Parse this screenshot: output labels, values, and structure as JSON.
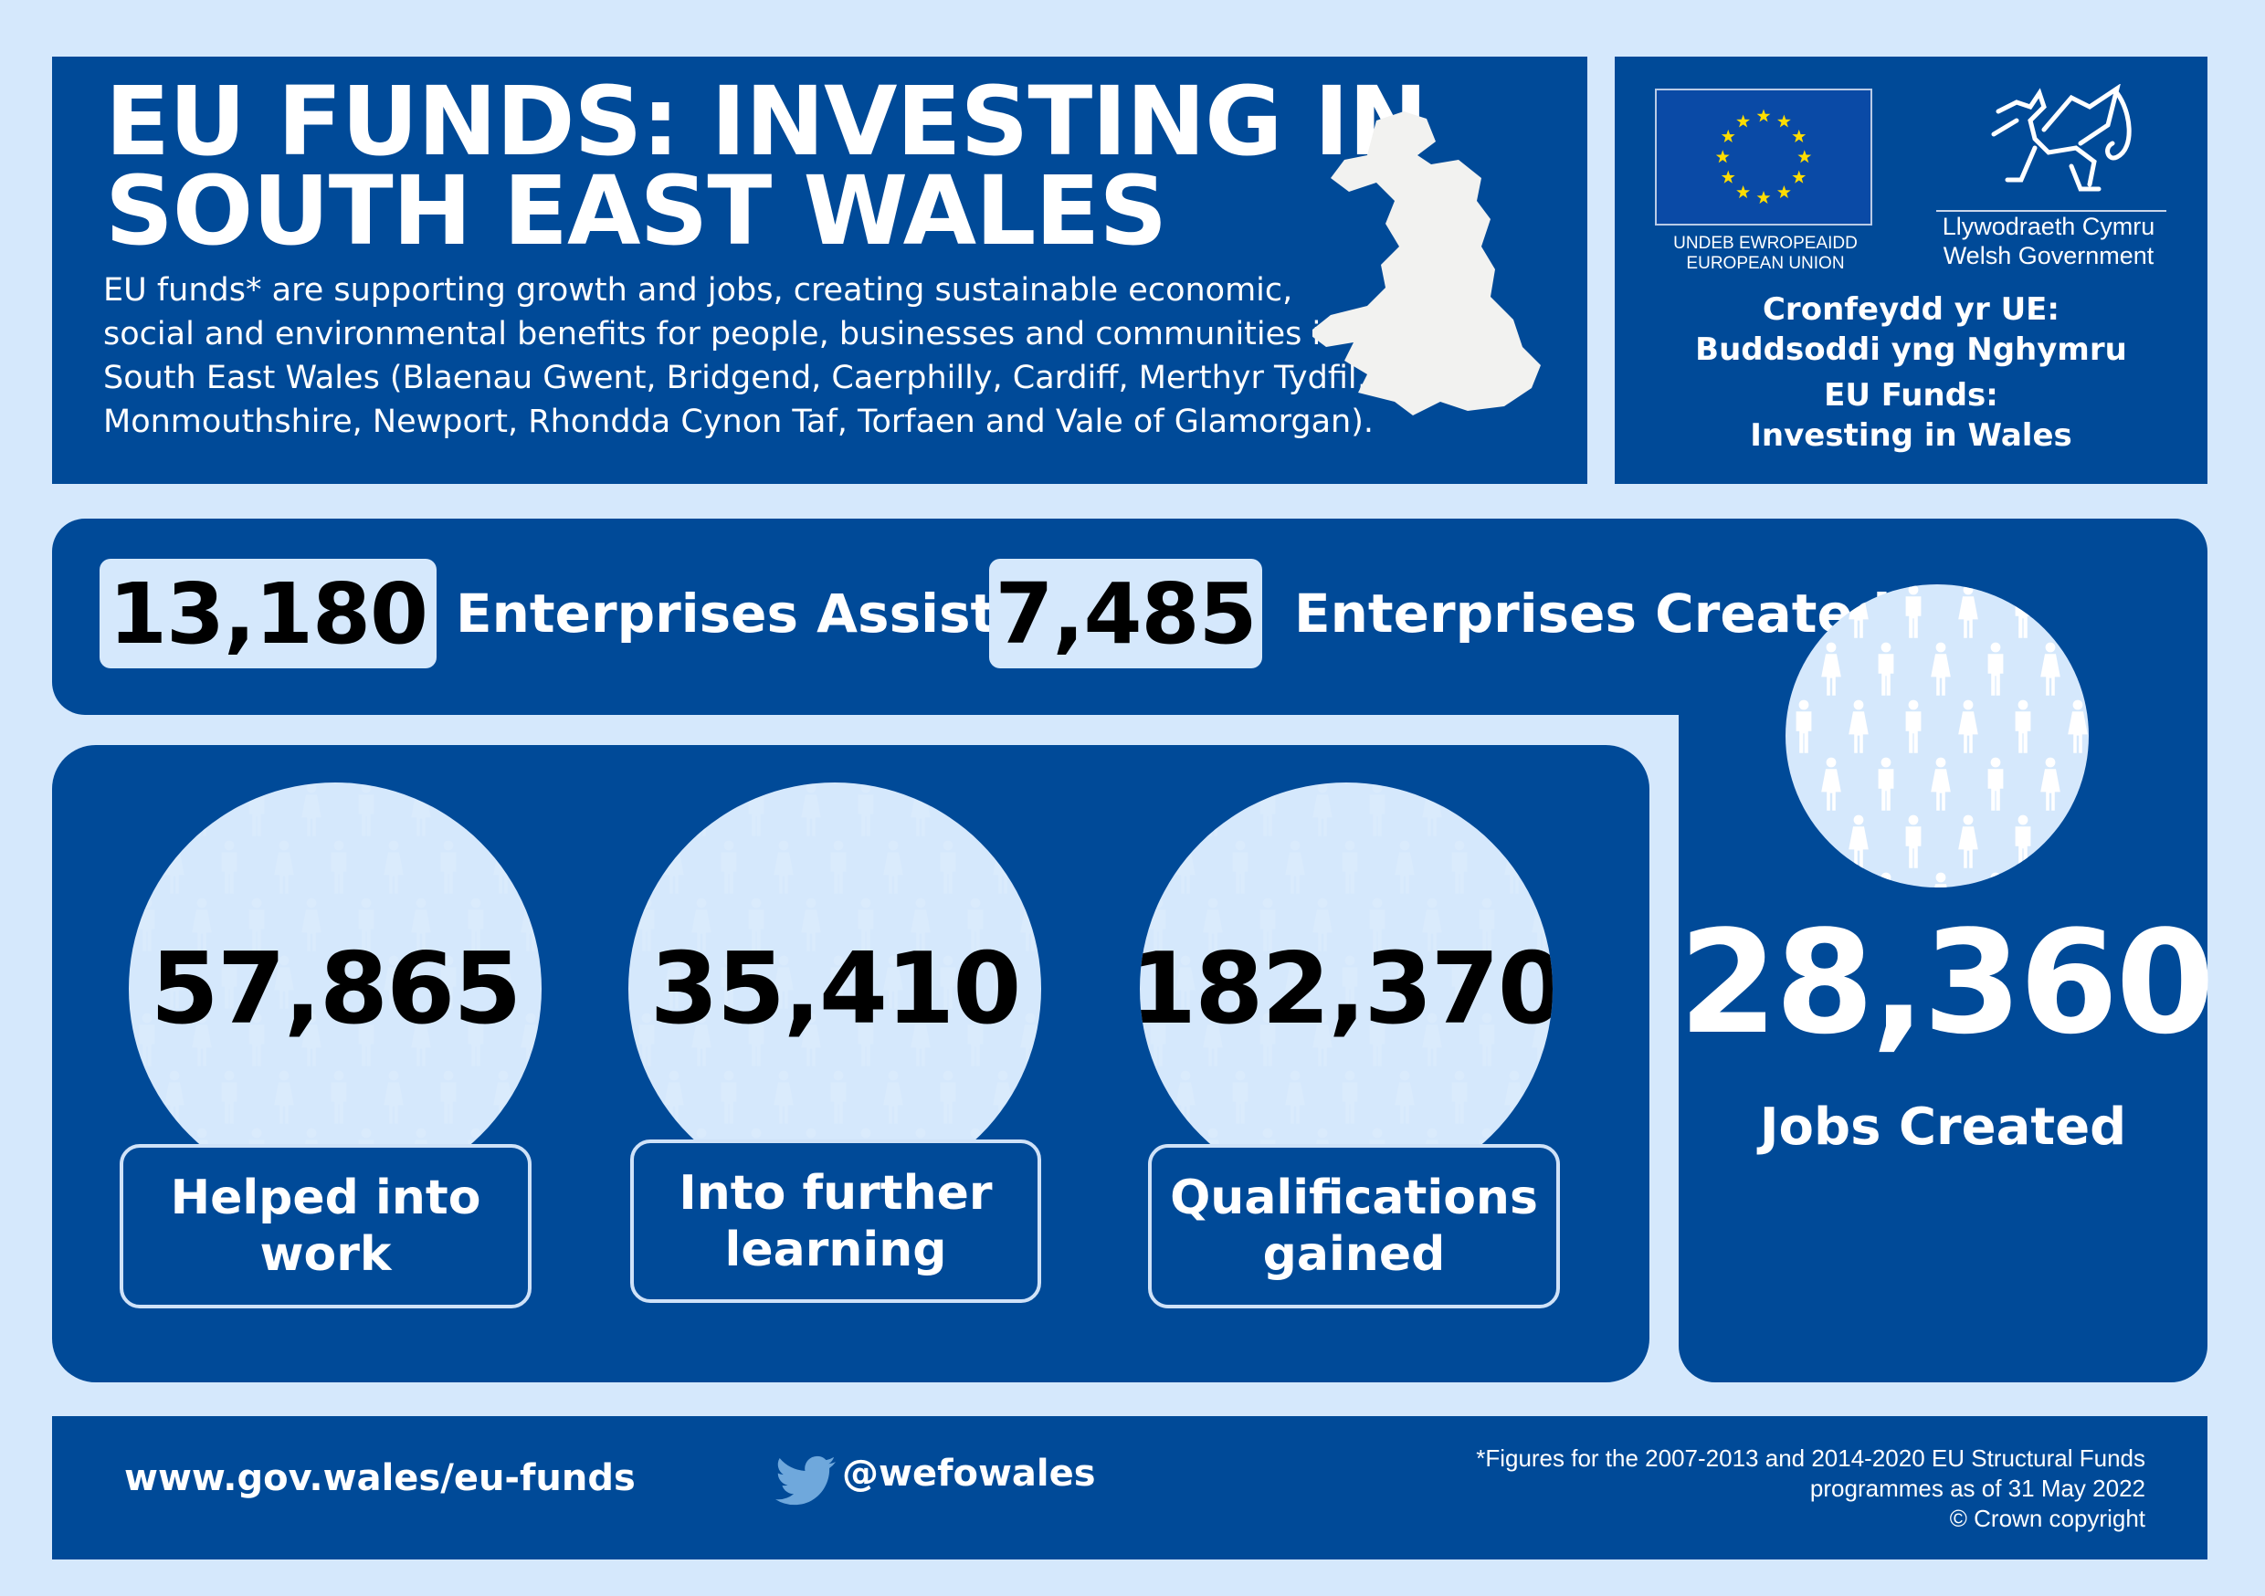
{
  "colors": {
    "background": "#d5e8fc",
    "primary": "#004a98",
    "eu_star": "#ffdd00",
    "text_light": "#ffffff",
    "text_dark": "#000000"
  },
  "header": {
    "title_line1": "EU FUNDS: INVESTING IN",
    "title_line2": "SOUTH EAST WALES",
    "description": "EU funds* are supporting growth and jobs, creating sustainable economic, social and environmental benefits for people, businesses and communities in South East Wales (Blaenau Gwent, Bridgend, Caerphilly, Cardiff, Merthyr Tydfil, Monmouthshire, Newport, Rhondda Cynon Taf, Torfaen and Vale of Glamorgan).",
    "map_icon": "wales-map-icon"
  },
  "logos": {
    "eu_line1": "UNDEB EWROPEAIDD",
    "eu_line2": "EUROPEAN UNION",
    "wg_line1": "Llywodraeth Cymru",
    "wg_line2": "Welsh Government",
    "fund_line1": "Cronfeydd yr UE:",
    "fund_line2": "Buddsoddi yng Nghymru",
    "fund_line3": "EU Funds:",
    "fund_line4": "Investing in Wales"
  },
  "stats": {
    "enterprises_assisted": {
      "value": "13,180",
      "label": "Enterprises Assisted"
    },
    "enterprises_created": {
      "value": "7,485",
      "label": "Enterprises Created"
    },
    "helped_into_work": {
      "value": "57,865",
      "label_line1": "Helped into",
      "label_line2": "work"
    },
    "further_learning": {
      "value": "35,410",
      "label_line1": "Into further",
      "label_line2": "learning"
    },
    "qualifications": {
      "value": "182,370",
      "label_line1": "Qualifications",
      "label_line2": "gained"
    },
    "jobs_created": {
      "value": "28,360",
      "label": "Jobs Created"
    }
  },
  "footer": {
    "url": "www.gov.wales/eu-funds",
    "twitter_handle": "@wefowales",
    "note_line1": "*Figures for the 2007-2013 and 2014-2020 EU Structural Funds",
    "note_line2": "programmes as of 31 May 2022",
    "note_line3": "©  Crown copyright"
  }
}
